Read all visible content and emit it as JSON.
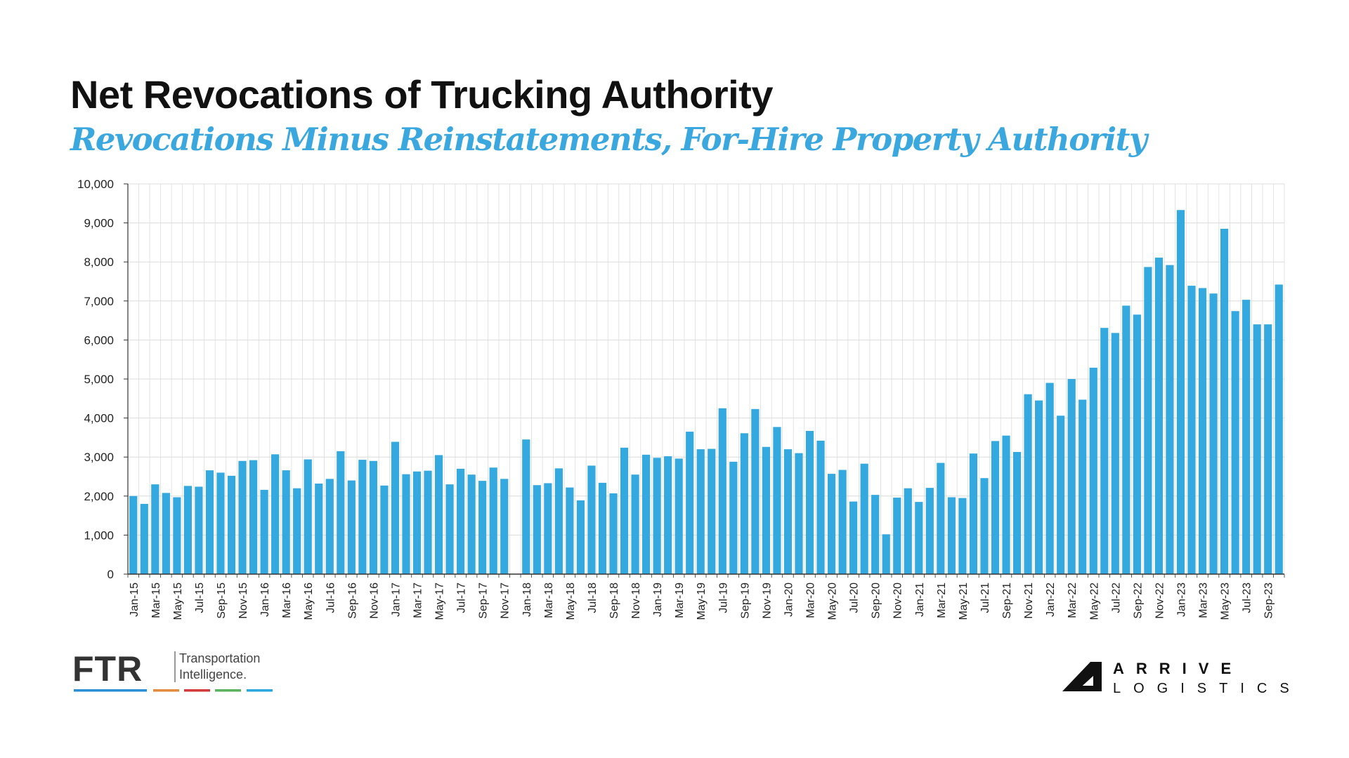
{
  "title": "Net Revocations of Trucking Authority",
  "subtitle": "Revocations Minus Reinstatements, For-Hire Property Authority",
  "colors": {
    "bar": "#33a9e0",
    "title": "#111111",
    "subtitle": "#3aa8df",
    "grid": "#dcdcdc"
  },
  "chart_data": {
    "type": "bar",
    "title": "Net Revocations of Trucking Authority",
    "subtitle": "Revocations Minus Reinstatements, For-Hire Property Authority",
    "xlabel": "",
    "ylabel": "",
    "ylim": [
      0,
      10000
    ],
    "yticks": [
      0,
      1000,
      2000,
      3000,
      4000,
      5000,
      6000,
      7000,
      8000,
      9000,
      10000
    ],
    "ytick_labels": [
      "0",
      "1,000",
      "2,000",
      "3,000",
      "4,000",
      "5,000",
      "6,000",
      "7,000",
      "8,000",
      "9,000",
      "10,000"
    ],
    "grid": true,
    "categories": [
      "Jan-15",
      "Feb-15",
      "Mar-15",
      "Apr-15",
      "May-15",
      "Jun-15",
      "Jul-15",
      "Aug-15",
      "Sep-15",
      "Oct-15",
      "Nov-15",
      "Dec-15",
      "Jan-16",
      "Feb-16",
      "Mar-16",
      "Apr-16",
      "May-16",
      "Jun-16",
      "Jul-16",
      "Aug-16",
      "Sep-16",
      "Oct-16",
      "Nov-16",
      "Dec-16",
      "Jan-17",
      "Feb-17",
      "Mar-17",
      "Apr-17",
      "May-17",
      "Jun-17",
      "Jul-17",
      "Aug-17",
      "Sep-17",
      "Oct-17",
      "Nov-17",
      "Dec-17",
      "Jan-18",
      "Feb-18",
      "Mar-18",
      "Apr-18",
      "May-18",
      "Jun-18",
      "Jul-18",
      "Aug-18",
      "Sep-18",
      "Oct-18",
      "Nov-18",
      "Dec-18",
      "Jan-19",
      "Feb-19",
      "Mar-19",
      "Apr-19",
      "May-19",
      "Jun-19",
      "Jul-19",
      "Aug-19",
      "Sep-19",
      "Oct-19",
      "Nov-19",
      "Dec-19",
      "Jan-20",
      "Feb-20",
      "Mar-20",
      "Apr-20",
      "May-20",
      "Jun-20",
      "Jul-20",
      "Aug-20",
      "Sep-20",
      "Oct-20",
      "Nov-20",
      "Dec-20",
      "Jan-21",
      "Feb-21",
      "Mar-21",
      "Apr-21",
      "May-21",
      "Jun-21",
      "Jul-21",
      "Aug-21",
      "Sep-21",
      "Oct-21",
      "Nov-21",
      "Dec-21",
      "Jan-22",
      "Feb-22",
      "Mar-22",
      "Apr-22",
      "May-22",
      "Jun-22",
      "Jul-22",
      "Aug-22",
      "Sep-22",
      "Oct-22",
      "Nov-22",
      "Dec-22",
      "Jan-23",
      "Feb-23",
      "Mar-23",
      "Apr-23",
      "May-23",
      "Jun-23",
      "Jul-23",
      "Aug-23",
      "Sep-23",
      "Oct-23"
    ],
    "tick_labels": [
      "Jan-15",
      "",
      "Mar-15",
      "",
      "May-15",
      "",
      "Jul-15",
      "",
      "Sep-15",
      "",
      "Nov-15",
      "",
      "Jan-16",
      "",
      "Mar-16",
      "",
      "May-16",
      "",
      "Jul-16",
      "",
      "Sep-16",
      "",
      "Nov-16",
      "",
      "Jan-17",
      "",
      "Mar-17",
      "",
      "May-17",
      "",
      "Jul-17",
      "",
      "Sep-17",
      "",
      "Nov-17",
      "",
      "Jan-18",
      "",
      "Mar-18",
      "",
      "May-18",
      "",
      "Jul-18",
      "",
      "Sep-18",
      "",
      "Nov-18",
      "",
      "Jan-19",
      "",
      "Mar-19",
      "",
      "May-19",
      "",
      "Jul-19",
      "",
      "Sep-19",
      "",
      "Nov-19",
      "",
      "Jan-20",
      "",
      "Mar-20",
      "",
      "May-20",
      "",
      "Jul-20",
      "",
      "Sep-20",
      "",
      "Nov-20",
      "",
      "Jan-21",
      "",
      "Mar-21",
      "",
      "May-21",
      "",
      "Jul-21",
      "",
      "Sep-21",
      "",
      "Nov-21",
      "",
      "Jan-22",
      "",
      "Mar-22",
      "",
      "May-22",
      "",
      "Jul-22",
      "",
      "Sep-22",
      "",
      "Nov-22",
      "",
      "Jan-23",
      "",
      "Mar-23",
      "",
      "May-23",
      "",
      "Jul-23",
      "",
      "Sep-23",
      ""
    ],
    "values": [
      2000,
      1800,
      2300,
      2080,
      1970,
      2260,
      2240,
      2660,
      2600,
      2520,
      2900,
      2920,
      2160,
      3070,
      2660,
      2200,
      2940,
      2320,
      2440,
      3150,
      2400,
      2930,
      2900,
      2270,
      3390,
      2560,
      2630,
      2650,
      3050,
      2300,
      2700,
      2550,
      2390,
      2730,
      2440,
      0,
      3450,
      2280,
      2330,
      2710,
      2220,
      1890,
      2780,
      2340,
      2070,
      3240,
      2550,
      3060,
      2980,
      3020,
      2960,
      3650,
      3200,
      3210,
      4250,
      2880,
      3610,
      4230,
      3260,
      3770,
      3200,
      3100,
      3670,
      3420,
      2570,
      2670,
      1860,
      2830,
      2030,
      1020,
      1960,
      2200,
      1850,
      2210,
      2850,
      1970,
      1950,
      3090,
      2460,
      3410,
      3550,
      3130,
      4610,
      4450,
      4900,
      4060,
      5000,
      4470,
      5290,
      6310,
      6180,
      6880,
      6650,
      7870,
      8110,
      7920,
      9330,
      7390,
      7330,
      7190,
      8850,
      6740,
      7030,
      6400,
      6400,
      7420
    ]
  },
  "logos": {
    "ftr": {
      "mark": "FTR",
      "line1": "Transportation",
      "line2": "Intelligence."
    },
    "arrive": {
      "line1": "ARRIVE",
      "line2": "LOGISTICS"
    }
  }
}
